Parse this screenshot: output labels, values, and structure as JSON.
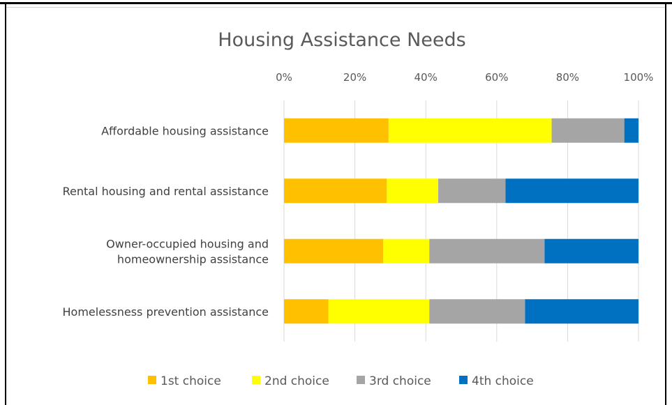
{
  "chart_data": {
    "type": "bar",
    "orientation": "horizontal",
    "stacked": "percent",
    "title": "Housing Assistance Needs",
    "xlabel": "",
    "ylabel": "",
    "xlim": [
      0,
      100
    ],
    "x_ticks": [
      "0%",
      "20%",
      "40%",
      "60%",
      "80%",
      "100%"
    ],
    "x_axis_position": "top",
    "grid": true,
    "legend_position": "bottom",
    "categories": [
      "Affordable housing assistance",
      "Rental housing and rental assistance",
      "Owner-occupied housing and homeownership assistance",
      "Homelessness prevention assistance"
    ],
    "category_label_lines": [
      [
        "Affordable housing assistance"
      ],
      [
        "Rental housing and rental assistance"
      ],
      [
        "Owner-occupied housing and",
        "homeownership assistance"
      ],
      [
        "Homelessness prevention assistance"
      ]
    ],
    "series": [
      {
        "name": "1st choice",
        "color": "#FFC000",
        "values": [
          29.5,
          29,
          28,
          12.5
        ]
      },
      {
        "name": "2nd choice",
        "color": "#FFFF00",
        "values": [
          46,
          14.5,
          13,
          28.5
        ]
      },
      {
        "name": "3rd choice",
        "color": "#A5A5A5",
        "values": [
          20.5,
          19,
          32.5,
          27
        ]
      },
      {
        "name": "4th choice",
        "color": "#0070C0",
        "values": [
          4,
          37.5,
          26.5,
          32
        ]
      }
    ]
  }
}
